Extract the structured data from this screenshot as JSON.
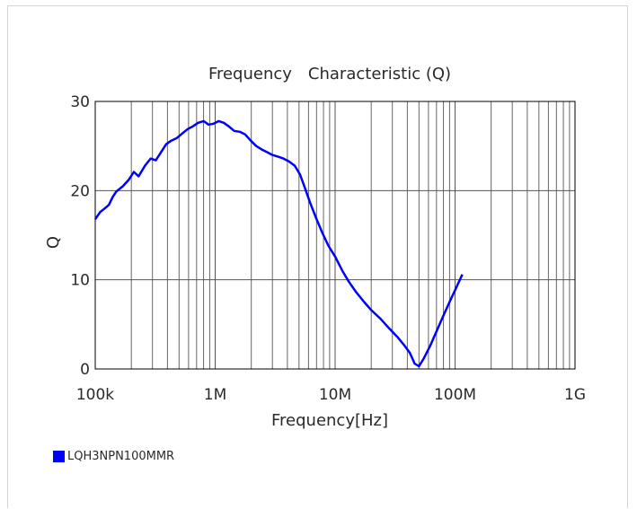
{
  "chart_data": {
    "type": "line",
    "title": "Frequency　Characteristic (Q)",
    "xlabel": "Frequency[Hz]",
    "ylabel": "Q",
    "x_scale": "log",
    "xlim": [
      100000,
      1000000000
    ],
    "ylim": [
      0,
      30
    ],
    "x_ticks": [
      {
        "value": 100000,
        "label": "100k"
      },
      {
        "value": 1000000,
        "label": "1M"
      },
      {
        "value": 10000000,
        "label": "10M"
      },
      {
        "value": 100000000,
        "label": "100M"
      },
      {
        "value": 1000000000,
        "label": "1G"
      }
    ],
    "y_ticks": [
      {
        "value": 0,
        "label": "0"
      },
      {
        "value": 10,
        "label": "10"
      },
      {
        "value": 20,
        "label": "20"
      },
      {
        "value": 30,
        "label": "30"
      }
    ],
    "grid": true,
    "legend_position": "bottom-left",
    "series": [
      {
        "name": "LQH3NPN100MMR",
        "color": "#0000ff",
        "points": [
          [
            100000,
            16.8
          ],
          [
            110000,
            17.6
          ],
          [
            120000,
            18.0
          ],
          [
            130000,
            18.4
          ],
          [
            140000,
            19.3
          ],
          [
            150000,
            19.9
          ],
          [
            170000,
            20.5
          ],
          [
            190000,
            21.2
          ],
          [
            210000,
            22.1
          ],
          [
            230000,
            21.6
          ],
          [
            260000,
            22.8
          ],
          [
            290000,
            23.6
          ],
          [
            320000,
            23.4
          ],
          [
            350000,
            24.2
          ],
          [
            390000,
            25.2
          ],
          [
            430000,
            25.6
          ],
          [
            480000,
            25.9
          ],
          [
            530000,
            26.4
          ],
          [
            590000,
            26.9
          ],
          [
            650000,
            27.2
          ],
          [
            720000,
            27.6
          ],
          [
            800000,
            27.8
          ],
          [
            880000,
            27.4
          ],
          [
            970000,
            27.5
          ],
          [
            1070000,
            27.8
          ],
          [
            1180000,
            27.6
          ],
          [
            1300000,
            27.2
          ],
          [
            1440000,
            26.7
          ],
          [
            1600000,
            26.6
          ],
          [
            1780000,
            26.3
          ],
          [
            1980000,
            25.6
          ],
          [
            2200000,
            25.0
          ],
          [
            2450000,
            24.6
          ],
          [
            2720000,
            24.3
          ],
          [
            3000000,
            24.0
          ],
          [
            3350000,
            23.8
          ],
          [
            3700000,
            23.6
          ],
          [
            4100000,
            23.3
          ],
          [
            4600000,
            22.8
          ],
          [
            5100000,
            21.8
          ],
          [
            5600000,
            20.3
          ],
          [
            6200000,
            18.6
          ],
          [
            6900000,
            17.0
          ],
          [
            7800000,
            15.3
          ],
          [
            8800000,
            13.8
          ],
          [
            10000000,
            12.6
          ],
          [
            11500000,
            11.0
          ],
          [
            13000000,
            9.8
          ],
          [
            15000000,
            8.6
          ],
          [
            17500000,
            7.5
          ],
          [
            20000000,
            6.6
          ],
          [
            24000000,
            5.6
          ],
          [
            28000000,
            4.6
          ],
          [
            33000000,
            3.6
          ],
          [
            38000000,
            2.6
          ],
          [
            42000000,
            1.8
          ],
          [
            46000000,
            0.6
          ],
          [
            50000000,
            0.3
          ],
          [
            55000000,
            1.2
          ],
          [
            62000000,
            2.6
          ],
          [
            70000000,
            4.2
          ],
          [
            80000000,
            6.0
          ],
          [
            92000000,
            7.8
          ],
          [
            103000000,
            9.2
          ],
          [
            115000000,
            10.6
          ]
        ]
      }
    ]
  }
}
